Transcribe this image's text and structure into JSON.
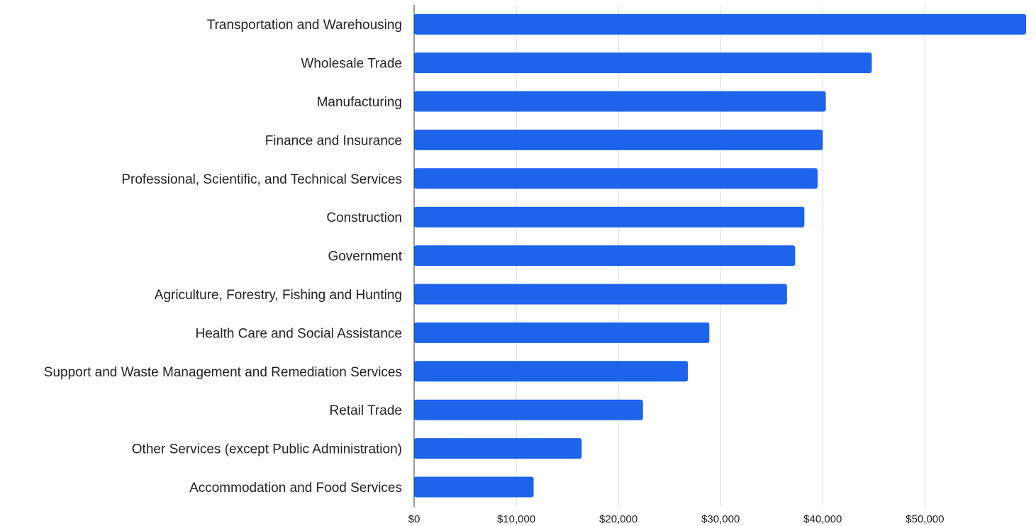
{
  "chart_data": {
    "type": "bar",
    "orientation": "horizontal",
    "title": "",
    "xlabel": "",
    "ylabel": "",
    "categories": [
      "Transportation and Warehousing",
      "Wholesale Trade",
      "Manufacturing",
      "Finance and Insurance",
      "Professional, Scientific, and Technical Services",
      "Construction",
      "Government",
      "Agriculture, Forestry, Fishing and Hunting",
      "Health Care and Social Assistance",
      "Support and Waste Management and Remediation Services",
      "Retail Trade",
      "Other Services (except Public Administration)",
      "Accommodation and Food Services"
    ],
    "values": [
      59900,
      44800,
      40300,
      40000,
      39500,
      38200,
      37300,
      36500,
      28900,
      26800,
      22400,
      16400,
      11700
    ],
    "xlim": [
      0,
      59900
    ],
    "xticks": [
      0,
      10000,
      20000,
      30000,
      40000,
      50000
    ],
    "xtick_labels": [
      "$0",
      "$10,000",
      "$20,000",
      "$30,000",
      "$40,000",
      "$50,000"
    ],
    "grid": true,
    "legend": "none",
    "colors": {
      "bar": "#1e64ea",
      "grid": "#dcdcdc",
      "axis": "#333333",
      "text": "#222222"
    }
  }
}
